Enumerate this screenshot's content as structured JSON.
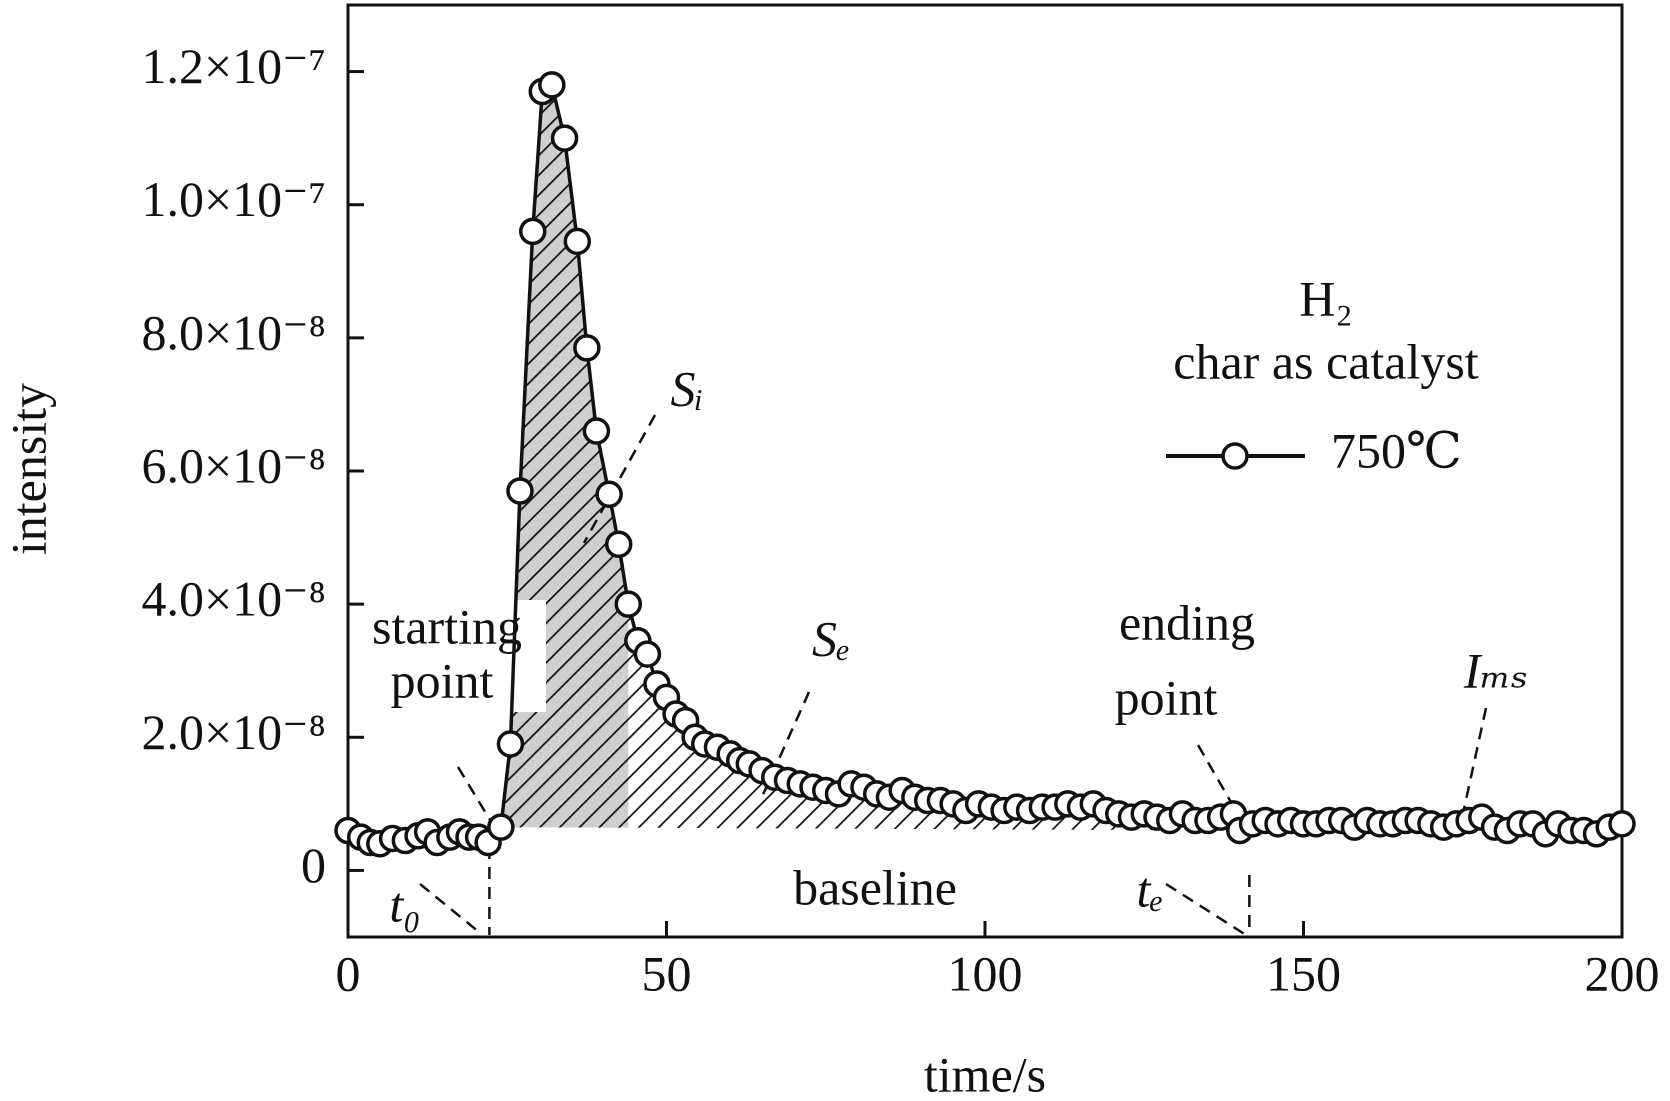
{
  "chart_data": {
    "type": "line",
    "xlabel": "time/s",
    "ylabel": "intensity",
    "legend_title": "H₂",
    "legend_subtitle": "char as catalyst",
    "x": [
      0,
      2,
      3.5,
      5,
      7,
      9,
      11,
      12.5,
      14,
      16,
      17.5,
      19,
      20.5,
      22,
      24,
      25.5,
      27,
      29,
      30.5,
      32,
      34,
      36,
      37.5,
      39,
      41,
      42.5,
      44,
      45.5,
      47,
      48.5,
      50,
      51.5,
      53,
      54.5,
      56,
      58,
      60,
      61.5,
      63,
      65,
      67,
      69,
      71,
      73,
      75,
      77,
      79,
      81,
      83,
      85,
      87,
      89,
      91,
      93,
      95,
      97,
      99,
      101,
      103,
      105,
      107,
      109,
      111,
      113,
      115,
      117,
      119,
      121,
      123,
      125,
      127,
      129,
      131,
      133,
      135,
      137,
      139,
      140,
      142,
      144,
      146,
      148,
      150,
      152,
      154,
      156,
      158,
      160,
      162,
      164,
      166,
      168,
      170,
      172,
      174,
      176,
      178,
      180,
      182,
      184,
      186,
      188,
      190,
      192,
      194,
      196,
      198,
      200
    ],
    "series": [
      {
        "name": "750℃",
        "color": "#111111",
        "values": [
          6e-09,
          5e-09,
          4.2e-09,
          4e-09,
          4.8e-09,
          4.5e-09,
          5.2e-09,
          5.8e-09,
          4.2e-09,
          5e-09,
          5.8e-09,
          5e-09,
          5e-09,
          4.2e-09,
          6.5e-09,
          1.9e-08,
          5.7e-08,
          9.6e-08,
          1.17e-07,
          1.18e-07,
          1.1e-07,
          9.45e-08,
          7.85e-08,
          6.6e-08,
          5.65e-08,
          4.9e-08,
          4e-08,
          3.45e-08,
          3.25e-08,
          2.8e-08,
          2.6e-08,
          2.35e-08,
          2.25e-08,
          2e-08,
          1.9e-08,
          1.85e-08,
          1.75e-08,
          1.65e-08,
          1.6e-08,
          1.5e-08,
          1.4e-08,
          1.35e-08,
          1.3e-08,
          1.25e-08,
          1.2e-08,
          1.15e-08,
          1.3e-08,
          1.25e-08,
          1.15e-08,
          1.1e-08,
          1.2e-08,
          1.1e-08,
          1.05e-08,
          1.05e-08,
          1e-08,
          9e-09,
          1e-08,
          9.5e-09,
          9e-09,
          9.5e-09,
          9e-09,
          9.5e-09,
          9.5e-09,
          1e-08,
          9.5e-09,
          1e-08,
          9e-09,
          8.5e-09,
          8e-09,
          8.5e-09,
          8e-09,
          7.5e-09,
          8.5e-09,
          7.5e-09,
          7.5e-09,
          8e-09,
          8.5e-09,
          6e-09,
          7e-09,
          7.5e-09,
          7e-09,
          7.5e-09,
          7e-09,
          7e-09,
          7.5e-09,
          7.5e-09,
          6.5e-09,
          7.5e-09,
          7e-09,
          7e-09,
          7.5e-09,
          7.5e-09,
          7e-09,
          6.5e-09,
          7e-09,
          7.5e-09,
          8e-09,
          6.5e-09,
          6e-09,
          7e-09,
          7e-09,
          5.5e-09,
          7e-09,
          6e-09,
          6e-09,
          5.5e-09,
          6.5e-09,
          7e-09
        ]
      }
    ],
    "xlim": [
      0,
      200
    ],
    "xticks": [
      0,
      50,
      100,
      150,
      200
    ],
    "ylim": [
      -1e-08,
      1.3e-07
    ],
    "yticks": [
      0,
      {
        "value": 2e-08,
        "label": "2.0×10⁻⁸"
      },
      {
        "value": 4e-08,
        "label": "4.0×10⁻⁸"
      },
      {
        "value": 6e-08,
        "label": "6.0×10⁻⁸"
      },
      {
        "value": 8e-08,
        "label": "8.0×10⁻⁸"
      },
      {
        "value": 1e-07,
        "label": "1.0×10⁻⁷"
      },
      {
        "value": 1.2e-07,
        "label": "1.2×10⁻⁷"
      }
    ],
    "markers": [
      {
        "text": "t₀",
        "x": 22.2
      },
      {
        "text": "tₑ",
        "x": 141.5
      }
    ],
    "annotations": [
      "Sᵢ",
      "starting",
      "point",
      "Sₑ",
      "ending",
      "point",
      "Iₘₛ",
      "baseline"
    ]
  }
}
